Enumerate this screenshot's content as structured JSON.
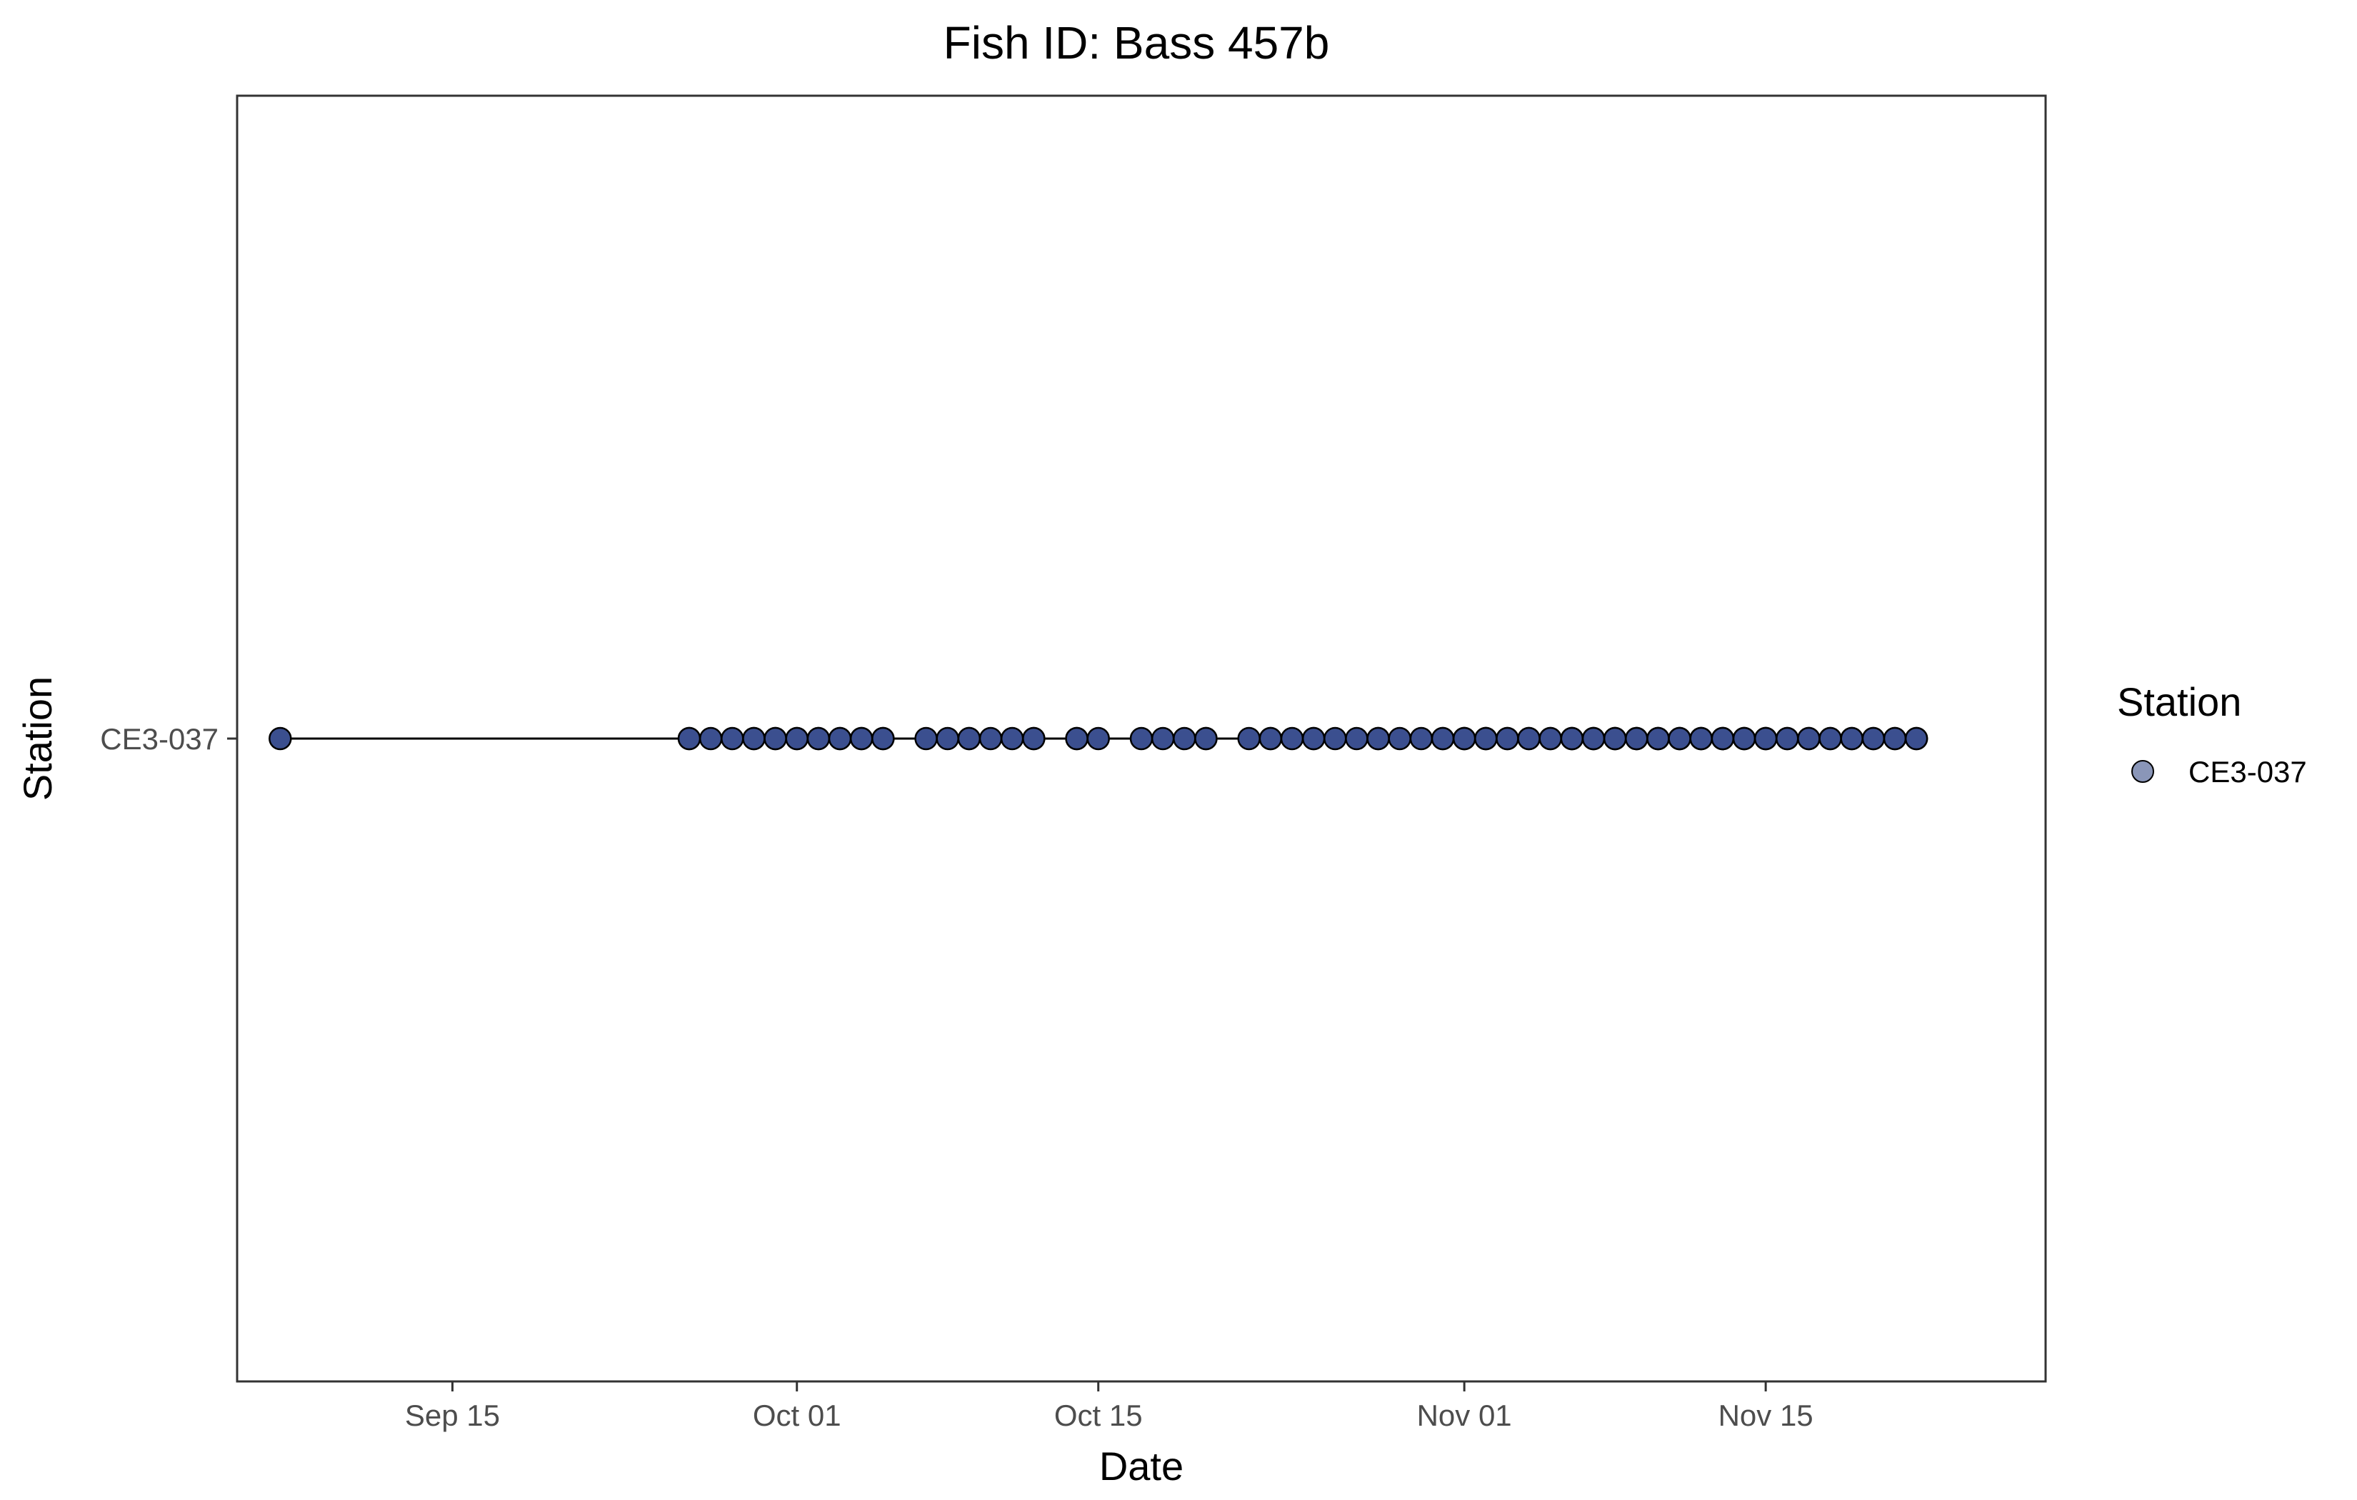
{
  "chart_data": {
    "type": "scatter",
    "title": "Fish ID: Bass 457b",
    "xlabel": "Date",
    "ylabel": "Station",
    "xlim": [
      "2022-09-05",
      "2022-11-28"
    ],
    "x_ticks": [
      "2022-09-15",
      "2022-10-01",
      "2022-10-15",
      "2022-11-01",
      "2022-11-15"
    ],
    "x_tick_labels": [
      "Sep 15",
      "Oct 01",
      "Oct 15",
      "Nov 01",
      "Nov 15"
    ],
    "categories": [
      "CE3-037"
    ],
    "connect_points": true,
    "grid": false,
    "legend": {
      "title": "Station",
      "position": "right",
      "entries": [
        "CE3-037"
      ]
    },
    "colors": {
      "point_fill": "#3b4f8f",
      "point_stroke": "#000000",
      "line": "#000000",
      "legend_point": "#8a96b8"
    },
    "series": [
      {
        "name": "CE3-037",
        "y": "CE3-037",
        "x": [
          "2022-09-07",
          "2022-09-26",
          "2022-09-26",
          "2022-09-27",
          "2022-09-28",
          "2022-09-29",
          "2022-09-29",
          "2022-09-30",
          "2022-09-30",
          "2022-10-01",
          "2022-10-01",
          "2022-10-02",
          "2022-10-02",
          "2022-10-03",
          "2022-10-03",
          "2022-10-04",
          "2022-10-04",
          "2022-10-05",
          "2022-10-05",
          "2022-10-07",
          "2022-10-08",
          "2022-10-09",
          "2022-10-09",
          "2022-10-10",
          "2022-10-11",
          "2022-10-12",
          "2022-10-12",
          "2022-10-14",
          "2022-10-14",
          "2022-10-15",
          "2022-10-17",
          "2022-10-18",
          "2022-10-19",
          "2022-10-20",
          "2022-10-20",
          "2022-10-22",
          "2022-10-23",
          "2022-10-23",
          "2022-10-24",
          "2022-10-25",
          "2022-10-25",
          "2022-10-26",
          "2022-10-27",
          "2022-10-28",
          "2022-10-28",
          "2022-10-29",
          "2022-10-30",
          "2022-10-31",
          "2022-10-31",
          "2022-11-01",
          "2022-11-01",
          "2022-11-01",
          "2022-11-02",
          "2022-11-02",
          "2022-11-02",
          "2022-11-03",
          "2022-11-03",
          "2022-11-04",
          "2022-11-04",
          "2022-11-05",
          "2022-11-05",
          "2022-11-06",
          "2022-11-06",
          "2022-11-06",
          "2022-11-07",
          "2022-11-07",
          "2022-11-07",
          "2022-11-08",
          "2022-11-08",
          "2022-11-08",
          "2022-11-09",
          "2022-11-09",
          "2022-11-09",
          "2022-11-10",
          "2022-11-10",
          "2022-11-10",
          "2022-11-11",
          "2022-11-11",
          "2022-11-11",
          "2022-11-12",
          "2022-11-12",
          "2022-11-12",
          "2022-11-13",
          "2022-11-13",
          "2022-11-13",
          "2022-11-14",
          "2022-11-14",
          "2022-11-14",
          "2022-11-15",
          "2022-11-15",
          "2022-11-15",
          "2022-11-16",
          "2022-11-16",
          "2022-11-17",
          "2022-11-17",
          "2022-11-18",
          "2022-11-18",
          "2022-11-19",
          "2022-11-19",
          "2022-11-20",
          "2022-11-20",
          "2022-11-21",
          "2022-11-21",
          "2022-11-22",
          "2022-11-22"
        ]
      }
    ]
  }
}
